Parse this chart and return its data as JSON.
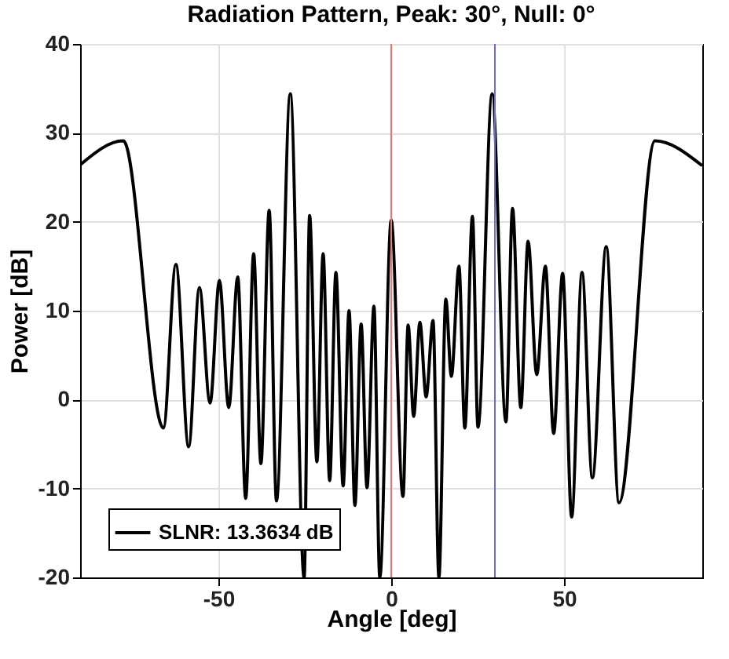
{
  "chart_data": {
    "type": "line",
    "title": "Radiation Pattern, Peak: 30°, Null: 0°",
    "xlabel": "Angle [deg]",
    "ylabel": "Power [dB]",
    "x": [
      -90,
      -77.5,
      -65.9,
      -62.3,
      -58.6,
      -55.5,
      -52.4,
      -49.7,
      -47.0,
      -44.4,
      -42.1,
      -39.8,
      -37.7,
      -35.3,
      -33.2,
      -29.2,
      -25.2,
      -23.6,
      -21.5,
      -19.7,
      -17.8,
      -16.0,
      -13.9,
      -12.2,
      -10.5,
      -8.7,
      -7.0,
      -5.0,
      -3.3,
      0,
      3.4,
      4.9,
      6.5,
      8.3,
      10.1,
      12.1,
      13.8,
      15.8,
      17.4,
      19.6,
      21.3,
      23.5,
      25.1,
      29.2,
      33.2,
      35.1,
      37.5,
      39.6,
      42.1,
      44.6,
      47.0,
      49.6,
      52.2,
      55.2,
      58.2,
      62.2,
      65.9,
      76.3,
      90
    ],
    "series": [
      {
        "name": "SLNR: 13.3634 dB",
        "color": "#000000",
        "values": [
          26.4,
          29.1,
          -3.2,
          15.2,
          -5.3,
          12.6,
          -0.4,
          13.4,
          -0.9,
          13.8,
          -11.1,
          16.4,
          -7.2,
          21.3,
          -11.4,
          34.4,
          -20,
          20.7,
          -7,
          16.4,
          -9.1,
          14.3,
          -9.7,
          10,
          -11.9,
          8.5,
          -9.9,
          10.5,
          -20,
          20.2,
          -10.9,
          8.4,
          -1.9,
          8.7,
          0.3,
          8.9,
          -20,
          11.3,
          2.6,
          15,
          -3.2,
          20.6,
          -3.1,
          34.4,
          -2.5,
          21.5,
          -0.9,
          17.8,
          2.8,
          15,
          -3.8,
          14.2,
          -13.2,
          14.3,
          -8.8,
          17.2,
          -11.6,
          29.1,
          26.3
        ]
      }
    ],
    "xlim": [
      -90,
      90
    ],
    "ylim": [
      -20,
      40
    ],
    "xticks": [
      -50,
      0,
      50
    ],
    "yticks": [
      -20,
      -10,
      0,
      10,
      20,
      30,
      40
    ],
    "ref_lines": [
      {
        "axis": "x",
        "value": 0,
        "color": "#e87878"
      },
      {
        "axis": "x",
        "value": 30,
        "color": "#6a6ad8"
      }
    ],
    "grid": true,
    "legend": "bottom left",
    "line_style": "solid",
    "marker": "none"
  }
}
